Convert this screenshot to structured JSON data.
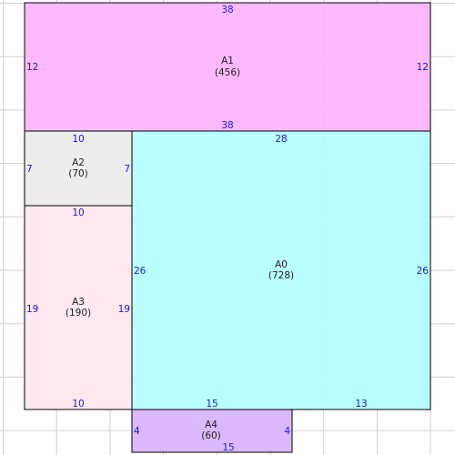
{
  "colors": {
    "background": "#ffffff",
    "grid": "#d0d0d0",
    "outline": "#000000",
    "dimension_text": "#1a1ad6",
    "label_text": "#222222"
  },
  "rooms": [
    {
      "id": "A1",
      "label": "A1",
      "area": "(456)",
      "fill": "#ffb3ff",
      "dims": {
        "top": "38",
        "bottom": "38",
        "left": "12",
        "right": "12"
      }
    },
    {
      "id": "A2",
      "label": "A2",
      "area": "(70)",
      "fill": "#eaeaea",
      "dims": {
        "top": "10",
        "left": "7",
        "right": "7"
      }
    },
    {
      "id": "A3",
      "label": "A3",
      "area": "(190)",
      "fill": "#ffe6ee",
      "dims": {
        "top": "10",
        "bottom": "10",
        "left": "19",
        "right": "19"
      }
    },
    {
      "id": "A0",
      "label": "A0",
      "area": "(728)",
      "fill": "#b3ffff",
      "dims": {
        "top": "28",
        "bottom_left": "15",
        "bottom_right": "13",
        "left": "26",
        "right": "26"
      }
    },
    {
      "id": "A4",
      "label": "A4",
      "area": "(60)",
      "fill": "#d9b3ff",
      "dims": {
        "bottom": "15",
        "left": "4",
        "right": "4"
      }
    }
  ]
}
